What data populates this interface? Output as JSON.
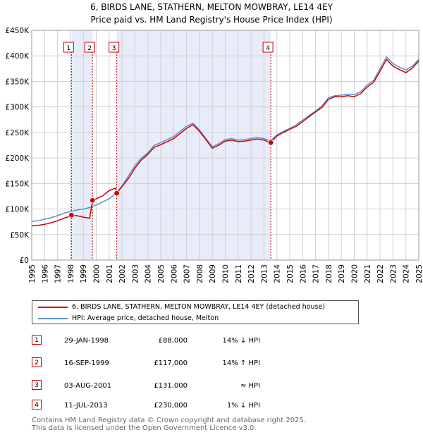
{
  "title": {
    "line1": "6, BIRDS LANE, STATHERN, MELTON MOWBRAY, LE14 4EY",
    "line2": "Price paid vs. HM Land Registry's House Price Index (HPI)"
  },
  "colors": {
    "property": "#cc0000",
    "hpi": "#5b8fd1",
    "shade": "#e8ecf8",
    "grid": "#d0d0d0",
    "marker": "#cc0000"
  },
  "legend": {
    "property_label": "6, BIRDS LANE, STATHERN, MELTON MOWBRAY, LE14 4EY (detached house)",
    "hpi_label": "HPI: Average price, detached house, Melton"
  },
  "transactions": [
    {
      "num": "1",
      "date": "29-JAN-1998",
      "price": "£88,000",
      "vs_hpi": "14% ↓ HPI"
    },
    {
      "num": "2",
      "date": "16-SEP-1999",
      "price": "£117,000",
      "vs_hpi": "14% ↑ HPI"
    },
    {
      "num": "3",
      "date": "03-AUG-2001",
      "price": "£131,000",
      "vs_hpi": "≈ HPI"
    },
    {
      "num": "4",
      "date": "11-JUL-2013",
      "price": "£230,000",
      "vs_hpi": "1% ↓ HPI"
    }
  ],
  "footer": {
    "line1": "Contains HM Land Registry data © Crown copyright and database right 2025.",
    "line2": "This data is licensed under the Open Government Licence v3.0."
  },
  "chart_data": {
    "type": "line",
    "title": "6, BIRDS LANE, STATHERN, MELTON MOWBRAY, LE14 4EY",
    "subtitle": "Price paid vs. HM Land Registry's House Price Index (HPI)",
    "xlabel": "",
    "ylabel": "",
    "xlim": [
      1995,
      2025
    ],
    "ylim": [
      0,
      450000
    ],
    "x_ticks": [
      "1995",
      "1996",
      "1997",
      "1998",
      "1999",
      "2000",
      "2001",
      "2002",
      "2003",
      "2004",
      "2005",
      "2006",
      "2007",
      "2008",
      "2009",
      "2010",
      "2011",
      "2012",
      "2013",
      "2014",
      "2015",
      "2016",
      "2017",
      "2018",
      "2019",
      "2020",
      "2021",
      "2022",
      "2023",
      "2024",
      "2025"
    ],
    "y_ticks": [
      {
        "value": 0,
        "label": "£0"
      },
      {
        "value": 50000,
        "label": "£50K"
      },
      {
        "value": 100000,
        "label": "£100K"
      },
      {
        "value": 150000,
        "label": "£150K"
      },
      {
        "value": 200000,
        "label": "£200K"
      },
      {
        "value": 250000,
        "label": "£250K"
      },
      {
        "value": 300000,
        "label": "£300K"
      },
      {
        "value": 350000,
        "label": "£350K"
      },
      {
        "value": 400000,
        "label": "£400K"
      },
      {
        "value": 450000,
        "label": "£450K"
      }
    ],
    "grid": true,
    "legend_position": "below",
    "shaded_ranges": [
      [
        1998.08,
        1999.71
      ],
      [
        2001.59,
        2013.53
      ]
    ],
    "sales": [
      {
        "label": "1",
        "x": 1998.08,
        "y": 88000
      },
      {
        "label": "2",
        "x": 1999.71,
        "y": 117000
      },
      {
        "label": "3",
        "x": 2001.59,
        "y": 131000
      },
      {
        "label": "4",
        "x": 2013.53,
        "y": 230000
      }
    ],
    "series": [
      {
        "name": "HPI: Average price, detached house, Melton",
        "x": [
          1995.0,
          1995.5,
          1996.0,
          1996.5,
          1997.0,
          1997.5,
          1998.0,
          1998.5,
          1999.0,
          1999.5,
          2000.0,
          2000.5,
          2001.0,
          2001.5,
          2002.0,
          2002.5,
          2003.0,
          2003.5,
          2004.0,
          2004.5,
          2005.0,
          2005.5,
          2006.0,
          2006.5,
          2007.0,
          2007.5,
          2008.0,
          2008.5,
          2009.0,
          2009.5,
          2010.0,
          2010.5,
          2011.0,
          2011.5,
          2012.0,
          2012.5,
          2013.0,
          2013.5,
          2014.0,
          2014.5,
          2015.0,
          2015.5,
          2016.0,
          2016.5,
          2017.0,
          2017.5,
          2018.0,
          2018.5,
          2019.0,
          2019.5,
          2020.0,
          2020.5,
          2021.0,
          2021.5,
          2022.0,
          2022.5,
          2023.0,
          2023.5,
          2024.0,
          2024.5,
          2025.0
        ],
        "values": [
          76000,
          77000,
          80000,
          83000,
          87000,
          92000,
          95000,
          98000,
          100000,
          103000,
          108000,
          114000,
          120000,
          130000,
          145000,
          165000,
          185000,
          200000,
          210000,
          225000,
          230000,
          236000,
          242000,
          252000,
          262000,
          268000,
          255000,
          238000,
          222000,
          228000,
          236000,
          238000,
          235000,
          236000,
          238000,
          240000,
          238000,
          234000,
          245000,
          252000,
          258000,
          265000,
          274000,
          283000,
          292000,
          302000,
          318000,
          322000,
          323000,
          325000,
          324000,
          330000,
          343000,
          352000,
          375000,
          398000,
          385000,
          378000,
          372000,
          380000,
          393000
        ]
      },
      {
        "name": "6, BIRDS LANE, STATHERN, MELTON MOWBRAY, LE14 4EY (detached house)",
        "x": [
          1995.0,
          1995.5,
          1996.0,
          1996.5,
          1997.0,
          1997.5,
          1998.0,
          1998.08,
          1998.5,
          1999.0,
          1999.5,
          1999.71,
          2000.0,
          2000.5,
          2001.0,
          2001.5,
          2001.59,
          2002.0,
          2002.5,
          2003.0,
          2003.5,
          2004.0,
          2004.5,
          2005.0,
          2005.5,
          2006.0,
          2006.5,
          2007.0,
          2007.5,
          2008.0,
          2008.5,
          2009.0,
          2009.5,
          2010.0,
          2010.5,
          2011.0,
          2011.5,
          2012.0,
          2012.5,
          2013.0,
          2013.53,
          2014.0,
          2014.5,
          2015.0,
          2015.5,
          2016.0,
          2016.5,
          2017.0,
          2017.5,
          2018.0,
          2018.5,
          2019.0,
          2019.5,
          2020.0,
          2020.5,
          2021.0,
          2021.5,
          2022.0,
          2022.5,
          2023.0,
          2023.5,
          2024.0,
          2024.5,
          2025.0
        ],
        "values": [
          67000,
          68000,
          70000,
          73000,
          77000,
          82000,
          86000,
          88000,
          87000,
          84000,
          82000,
          117000,
          120000,
          126000,
          136000,
          141000,
          131000,
          144000,
          160000,
          180000,
          196000,
          207000,
          221000,
          226000,
          232000,
          238000,
          248000,
          258000,
          265000,
          252000,
          236000,
          219000,
          225000,
          233000,
          235000,
          232000,
          233000,
          235000,
          237000,
          235000,
          230000,
          243000,
          250000,
          256000,
          262000,
          271000,
          281000,
          290000,
          299000,
          315000,
          320000,
          320000,
          322000,
          320000,
          326000,
          339000,
          348000,
          370000,
          393000,
          380000,
          373000,
          367000,
          376000,
          390000
        ]
      }
    ]
  }
}
